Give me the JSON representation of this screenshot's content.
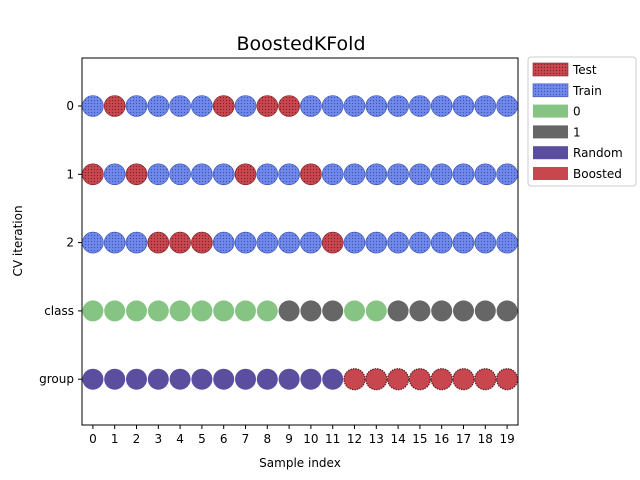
{
  "chart_data": {
    "type": "scatter",
    "title": "BoostedKFold",
    "xlabel": "Sample index",
    "ylabel": "CV iteration",
    "x": [
      0,
      1,
      2,
      3,
      4,
      5,
      6,
      7,
      8,
      9,
      10,
      11,
      12,
      13,
      14,
      15,
      16,
      17,
      18,
      19
    ],
    "xlim": [
      -0.5,
      19.5
    ],
    "rows": [
      {
        "label": "0",
        "kind": "split",
        "values": [
          "Train",
          "Test",
          "Train",
          "Train",
          "Train",
          "Train",
          "Test",
          "Train",
          "Test",
          "Test",
          "Train",
          "Train",
          "Train",
          "Train",
          "Train",
          "Train",
          "Train",
          "Train",
          "Train",
          "Train"
        ]
      },
      {
        "label": "1",
        "kind": "split",
        "values": [
          "Test",
          "Train",
          "Test",
          "Train",
          "Train",
          "Train",
          "Train",
          "Test",
          "Train",
          "Train",
          "Test",
          "Train",
          "Train",
          "Train",
          "Train",
          "Train",
          "Train",
          "Train",
          "Train",
          "Train"
        ]
      },
      {
        "label": "2",
        "kind": "split",
        "values": [
          "Train",
          "Train",
          "Train",
          "Test",
          "Test",
          "Test",
          "Train",
          "Train",
          "Train",
          "Train",
          "Train",
          "Test",
          "Train",
          "Train",
          "Train",
          "Train",
          "Train",
          "Train",
          "Train",
          "Train"
        ]
      },
      {
        "label": "class",
        "kind": "class",
        "values": [
          "0",
          "0",
          "0",
          "0",
          "0",
          "0",
          "0",
          "0",
          "0",
          "1",
          "1",
          "1",
          "0",
          "0",
          "1",
          "1",
          "1",
          "1",
          "1",
          "1"
        ]
      },
      {
        "label": "group",
        "kind": "group",
        "values": [
          "Random",
          "Random",
          "Random",
          "Random",
          "Random",
          "Random",
          "Random",
          "Random",
          "Random",
          "Random",
          "Random",
          "Random",
          "Boosted",
          "Boosted",
          "Boosted",
          "Boosted",
          "Boosted",
          "Boosted",
          "Boosted",
          "Boosted"
        ]
      }
    ],
    "legend": {
      "placement": "outside-upper-right",
      "entries": [
        {
          "label": "Test",
          "color": "#c8474f",
          "hatch": true
        },
        {
          "label": "Train",
          "color": "#6f88ea",
          "hatch": true
        },
        {
          "label": "0",
          "color": "#86c483",
          "hatch": false
        },
        {
          "label": "1",
          "color": "#666666",
          "hatch": false
        },
        {
          "label": "Random",
          "color": "#5b4e9e",
          "hatch": false
        },
        {
          "label": "Boosted",
          "color": "#c8474f",
          "hatch": false
        }
      ]
    },
    "colors": {
      "Test": "#c8474f",
      "Train": "#6f88ea",
      "0": "#86c483",
      "1": "#666666",
      "Random": "#5b4e9e",
      "Boosted": "#c8474f"
    },
    "grid": false
  }
}
